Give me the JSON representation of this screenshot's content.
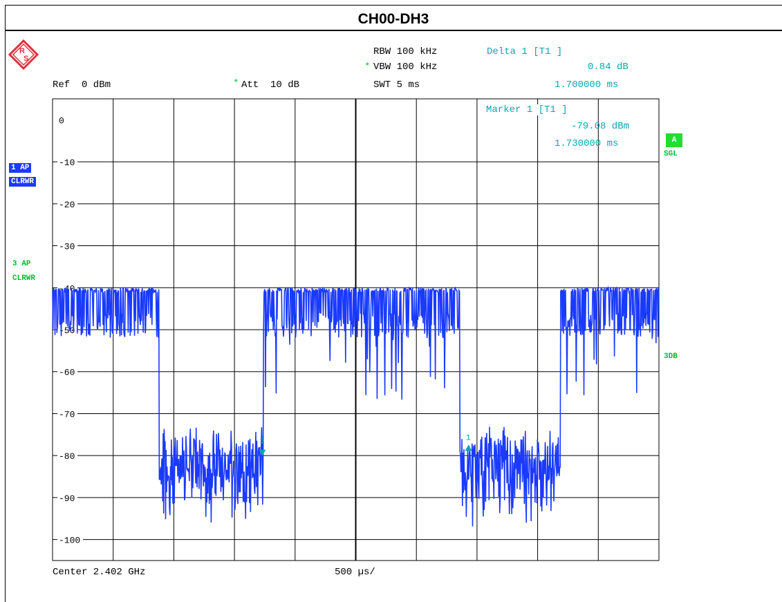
{
  "title": "CH00-DH3",
  "header": {
    "rbw": "RBW 100 kHz",
    "vbw_star": "*",
    "vbw": "VBW 100 kHz",
    "swt": "SWT 5 ms",
    "ref": "Ref  0 dBm",
    "att_star": "*",
    "att": "Att  10 dB",
    "delta_label": "Delta 1 [T1 ]",
    "delta_value": "0.84 dB",
    "delta_time": "1.700000 ms",
    "marker_label": "Marker 1 [T1 ]",
    "marker_value": "-79.08 dBm",
    "marker_time": "1.730000 ms"
  },
  "left_badges": {
    "trace1_a": "1 AP",
    "trace1_b": "CLRWR",
    "trace3_a": "3 AP",
    "trace3_b": "CLRWR"
  },
  "right_badges": {
    "a": "A",
    "sgl": "SGL",
    "db3": "3DB"
  },
  "footer": {
    "center": "Center 2.402 GHz",
    "span": "500 µs/"
  },
  "colors": {
    "trace": "#1a3aff",
    "marker": "#0aa6b0",
    "grid": "#000000",
    "annotation_green": "#00cc33"
  },
  "chart_data": {
    "type": "line",
    "title": "CH00-DH3",
    "xlabel": "",
    "ylabel": "",
    "x_unit": "µs",
    "x_range": [
      0,
      5000
    ],
    "ylim": [
      -105,
      5
    ],
    "y_ticks": [
      0,
      -10,
      -20,
      -30,
      -40,
      -50,
      -60,
      -70,
      -80,
      -90,
      -100
    ],
    "y_tick_labels": [
      "0",
      "-10",
      "-20",
      "-30",
      "-40",
      "-50",
      "-60",
      "-70",
      "-80",
      "-90",
      "-100"
    ],
    "grid": true,
    "series": [
      {
        "segments": [
          {
            "x0": 0,
            "x1": 880,
            "level": -40,
            "min": -52
          },
          {
            "x0": 880,
            "x1": 1740,
            "level": -80,
            "min": -96
          },
          {
            "x0": 1740,
            "x1": 3360,
            "level": -40,
            "min": -67
          },
          {
            "x0": 3360,
            "x1": 4190,
            "level": -80,
            "min": -97
          },
          {
            "x0": 4190,
            "x1": 5000,
            "level": -40,
            "min": -70
          }
        ]
      }
    ],
    "markers": [
      {
        "label": "1",
        "x": 1730,
        "y": -79.08,
        "shape": "down-triangle"
      },
      {
        "label": "1",
        "x": 3430,
        "y": -78.2,
        "shape": "up-triangle"
      }
    ]
  }
}
